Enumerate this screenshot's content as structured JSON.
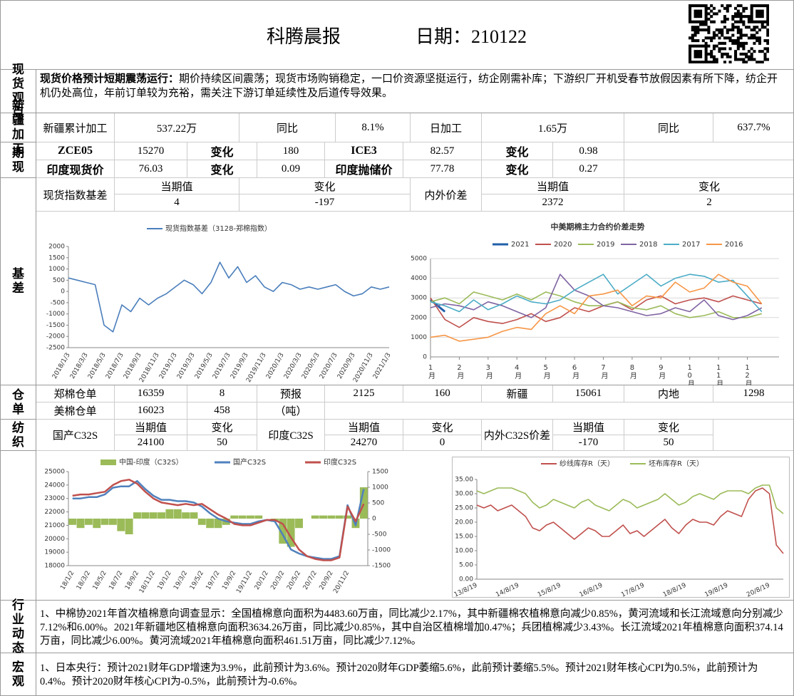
{
  "header": {
    "title": "科腾晨报",
    "date": "日期：210122"
  },
  "spot": {
    "label": "现货观点",
    "lead": "现货价格预计短期震荡运行：",
    "text": "期价持续区间震荡；现货市场购销稳定，一口价资源坚挺运行，纺企刚需补库；下游织厂开机受春节放假因素有所下降，纺企开机仍处高位，年前订单较为充裕，需关注下游订单延续性及后道传导效果。"
  },
  "xinjiang": {
    "label": "新疆加工",
    "cells": [
      "新疆累计加工",
      "537.22万",
      "同比",
      "8.1%",
      "日加工",
      "1.65万",
      "同比",
      "637.7%"
    ]
  },
  "futures": {
    "label": "期现",
    "rows": [
      [
        "ZCE05",
        "15270",
        "变化",
        "180",
        "ICE3",
        "82.57",
        "变化",
        "0.98"
      ],
      [
        "印度现货价",
        "76.03",
        "变化",
        "0.09",
        "印度抛储价",
        "77.78",
        "变化",
        "0.27"
      ]
    ]
  },
  "basis": {
    "label": "基差",
    "names": [
      "现货指数基差",
      "内外价差"
    ],
    "heads": [
      "当期值",
      "变化",
      "当期值",
      "变化"
    ],
    "values": [
      "4",
      "-197",
      "2372",
      "2"
    ]
  },
  "warehouse": {
    "label": "仓单",
    "rows": [
      [
        "郑棉仓单",
        "16359",
        "8",
        "预报",
        "2125",
        "160",
        "新疆",
        "15061",
        "内地",
        "1298"
      ],
      [
        "美棉仓单",
        "16023",
        "458",
        "（吨）"
      ]
    ]
  },
  "textile": {
    "label": "纺织",
    "names": [
      "国产C32S",
      "印度C32S",
      "内外C32S价差"
    ],
    "heads": [
      "当期值",
      "变化",
      "当期值",
      "变化",
      "当期值",
      "变化"
    ],
    "values": [
      "24100",
      "50",
      "24270",
      "0",
      "-170",
      "50"
    ]
  },
  "industry": {
    "label": "行业动态",
    "text": "1、中棉协2021年首次植棉意向调查显示：全国植棉意向面积为4483.60万亩，同比减少2.17%，其中新疆棉农植棉意向减少0.85%，黄河流域和长江流域意向分别减少7.12%和6.00%。2021年新疆地区植棉意向面积3634.26万亩，同比减少0.85%，其中自治区植棉增加0.47%；兵团植棉减少3.43%。长江流域2021年植棉意向面积374.14万亩，同比减少6.00%。黄河流域2021年植棉意向面积461.51万亩，同比减少7.12%。"
  },
  "macro": {
    "label": "宏观",
    "text": "1、日本央行：预计2021财年GDP增速为3.9%，此前预计为3.6%。预计2020财年GDP萎缩5.6%，此前预计萎缩5.5%。预计2021财年核心CPI为0.5%，此前预计为0.4%。预计2020财年核心CPI为-0.5%，此前预计为-0.6%。"
  },
  "chart_data": [
    {
      "type": "line",
      "categories": [
        "2018/1/3",
        null,
        "2018/3/3",
        null,
        "2018/5/3",
        null,
        "2018/7/3",
        null,
        "2018/9/3",
        null,
        "2018/11/3",
        null,
        "2019/1/3",
        null,
        "2019/3/3",
        null,
        "2019/5/3",
        null,
        "2019/7/3",
        null,
        "2019/9/3",
        null,
        "2019/11/3",
        null,
        "2020/1/3",
        null,
        "2020/3/3",
        null,
        "2020/5/3",
        null,
        "2020/7/3",
        null,
        "2020/9/3",
        null,
        "2020/11/3",
        null,
        "2021/1/3"
      ],
      "series": [
        {
          "name": "现货指数基差（3128-郑棉指数）",
          "color": "#4a7ebb",
          "values": [
            600,
            500,
            400,
            300,
            -1500,
            -1800,
            -600,
            -900,
            -300,
            -600,
            -300,
            -100,
            200,
            500,
            300,
            -100,
            400,
            1300,
            600,
            1100,
            400,
            700,
            200,
            0,
            400,
            300,
            100,
            200,
            100,
            200,
            300,
            0,
            -200,
            -100,
            200,
            100,
            200
          ]
        }
      ],
      "ylim": [
        -2500,
        2000
      ],
      "yticks": [
        2000,
        1500,
        1000,
        500,
        0,
        -500,
        -1000,
        -1500,
        -2000,
        -2500
      ],
      "grid": false
    },
    {
      "type": "line",
      "title": "中美期棉主力合约价差走势",
      "x": [
        1,
        1.5,
        2,
        2.5,
        3,
        3.5,
        4,
        4.5,
        5,
        5.5,
        6,
        6.5,
        7,
        7.5,
        8,
        8.5,
        9,
        9.5,
        10,
        10.5,
        11,
        11.5,
        12,
        12.5
      ],
      "series": [
        {
          "name": "2021",
          "color": "#1f5fa8",
          "values": [
            2900,
            2300,
            null,
            null,
            null,
            null,
            null,
            null,
            null,
            null,
            null,
            null,
            null,
            null,
            null,
            null,
            null,
            null,
            null,
            null,
            null,
            null,
            null,
            null
          ]
        },
        {
          "name": "2020",
          "color": "#c0504d",
          "values": [
            3000,
            1900,
            1500,
            2000,
            1800,
            1700,
            1900,
            2200,
            1800,
            2000,
            2500,
            2300,
            2600,
            2800,
            2400,
            2900,
            3100,
            2700,
            2900,
            3000,
            2800,
            3100,
            2900,
            2700
          ]
        },
        {
          "name": "2019",
          "color": "#9bbb59",
          "values": [
            2800,
            3000,
            2700,
            3300,
            3100,
            2900,
            3200,
            2900,
            3300,
            3100,
            2800,
            2600,
            2600,
            2800,
            2500,
            2400,
            2600,
            2200,
            2000,
            2100,
            2300,
            2000,
            2000,
            2200
          ]
        },
        {
          "name": "2018",
          "color": "#8064a2",
          "values": [
            2500,
            2700,
            2600,
            2400,
            2800,
            2600,
            2300,
            2000,
            2500,
            4200,
            3400,
            3100,
            2600,
            2500,
            2300,
            2100,
            2200,
            2500,
            2300,
            2900,
            2100,
            1900,
            2100,
            2500
          ]
        },
        {
          "name": "2017",
          "color": "#4bacc6",
          "values": [
            2800,
            2600,
            2300,
            2900,
            2400,
            2700,
            3100,
            2800,
            2700,
            2900,
            3400,
            3800,
            4200,
            3200,
            3700,
            4200,
            3600,
            4000,
            4200,
            4100,
            3800,
            3900,
            3100,
            2300
          ]
        },
        {
          "name": "2016",
          "color": "#f79646",
          "values": [
            1000,
            1100,
            800,
            900,
            1000,
            1300,
            1500,
            1400,
            2200,
            2600,
            2200,
            3100,
            3200,
            3400,
            2600,
            3100,
            3000,
            3800,
            3300,
            3500,
            4200,
            3800,
            3600,
            2700
          ]
        }
      ],
      "xlim": [
        1,
        13.1
      ],
      "xticks": [
        {
          "value": 1,
          "label": "1月"
        },
        {
          "value": 2,
          "label": "2月"
        },
        {
          "value": 3,
          "label": "3月"
        },
        {
          "value": 4,
          "label": "4月"
        },
        {
          "value": 5,
          "label": "5月"
        },
        {
          "value": 6,
          "label": "6月"
        },
        {
          "value": 7,
          "label": "7月"
        },
        {
          "value": 8,
          "label": "8月"
        },
        {
          "value": 9,
          "label": "9月"
        },
        {
          "value": 10,
          "label": "10月"
        },
        {
          "value": 11,
          "label": "11月"
        },
        {
          "value": 12,
          "label": "12月"
        }
      ],
      "ylim": [
        0,
        5000
      ],
      "yticks": [
        0,
        1000,
        2000,
        3000,
        4000,
        5000
      ],
      "grid": true
    },
    {
      "type": "combo",
      "categories": [
        "18/1/2",
        null,
        "18/3/2",
        null,
        "18/5/2",
        null,
        "18/7/2",
        null,
        "18/9/2",
        null,
        "18/11/2",
        null,
        "19/1/2",
        null,
        "19/3/2",
        null,
        "19/5/2",
        null,
        "19/7/2",
        null,
        "19/9/2",
        null,
        "19/11/2",
        null,
        "20/1/2",
        null,
        "20/3/2",
        null,
        "20/5/2",
        null,
        "20/7/2",
        null,
        "20/9/2",
        null,
        "20/11/2",
        null,
        null
      ],
      "series": [
        {
          "name": "中国-印度（C32S）",
          "type": "bar",
          "axis": "y2",
          "color": "#9bbb59",
          "values": [
            -200,
            -300,
            -200,
            -300,
            -200,
            -200,
            -400,
            -500,
            200,
            200,
            200,
            200,
            300,
            300,
            200,
            200,
            -200,
            -300,
            -300,
            -200,
            100,
            100,
            100,
            100,
            0,
            -100,
            -800,
            -900,
            -300,
            0,
            100,
            100,
            100,
            100,
            100,
            -300,
            1000
          ]
        },
        {
          "name": "国产C32S",
          "type": "line",
          "color": "#4f81bd",
          "values": [
            23000,
            23000,
            23100,
            23100,
            23300,
            23800,
            23900,
            23900,
            24300,
            23700,
            23200,
            22900,
            22900,
            22800,
            22800,
            22700,
            22400,
            21900,
            21500,
            21300,
            21200,
            21100,
            21100,
            21300,
            21400,
            21300,
            20300,
            19200,
            18900,
            18700,
            18600,
            18500,
            18500,
            18700,
            22500,
            21000,
            23700
          ]
        },
        {
          "name": "印度C32S",
          "type": "line",
          "color": "#c0504d",
          "values": [
            23200,
            23300,
            23300,
            23400,
            23500,
            24000,
            24300,
            24400,
            24100,
            23500,
            23000,
            22700,
            22600,
            22500,
            22600,
            22500,
            22600,
            22200,
            21800,
            21500,
            21100,
            21000,
            21000,
            21200,
            21400,
            21400,
            21100,
            20100,
            19200,
            18700,
            18500,
            18400,
            18400,
            18600,
            22400,
            21300,
            22600
          ]
        }
      ],
      "ylim": [
        18000,
        25000
      ],
      "yticks": [
        25000,
        24000,
        23000,
        22000,
        21000,
        20000,
        19000,
        18000
      ],
      "y2lim": [
        -1500,
        1500
      ],
      "y2ticks": [
        1500,
        1000,
        500,
        0,
        -500,
        -1000,
        -1500
      ],
      "grid": false
    },
    {
      "type": "line",
      "categories": [
        "13/8/19",
        null,
        null,
        null,
        null,
        null,
        "14/8/19",
        null,
        null,
        null,
        null,
        null,
        "15/8/19",
        null,
        null,
        null,
        null,
        null,
        "16/8/19",
        null,
        null,
        null,
        null,
        null,
        "17/8/19",
        null,
        null,
        null,
        null,
        null,
        "18/8/19",
        null,
        null,
        null,
        null,
        null,
        "19/8/19",
        null,
        null,
        null,
        null,
        null,
        "20/8/19",
        null,
        null
      ],
      "series": [
        {
          "name": "纱线库存R（天）",
          "color": "#c0504d",
          "values": [
            26,
            25,
            26,
            24,
            25,
            26,
            24,
            22,
            18,
            17,
            19,
            20,
            18,
            16,
            14,
            16,
            18,
            17,
            15,
            15,
            17,
            19,
            16,
            17,
            15,
            17,
            19,
            21,
            18,
            16,
            19,
            21,
            20,
            20,
            19,
            22,
            24,
            23,
            22,
            28,
            31,
            32,
            30,
            12,
            9
          ]
        },
        {
          "name": "坯布库存R（天）",
          "color": "#9bbb59",
          "values": [
            31,
            30,
            31,
            32,
            32,
            32,
            31,
            30,
            27,
            25,
            26,
            28,
            27,
            26,
            25,
            27,
            28,
            26,
            25,
            24,
            26,
            28,
            27,
            25,
            26,
            27,
            28,
            30,
            28,
            26,
            27,
            29,
            30,
            29,
            28,
            30,
            31,
            31,
            31,
            30,
            32,
            33,
            33,
            25,
            23
          ]
        }
      ],
      "ylim": [
        0,
        35
      ],
      "yticks": [
        {
          "value": 0,
          "label": "0.00"
        },
        {
          "value": 5,
          "label": "5.00"
        },
        {
          "value": 10,
          "label": "10.00"
        },
        {
          "value": 15,
          "label": "15.00"
        },
        {
          "value": 20,
          "label": "20.00"
        },
        {
          "value": 25,
          "label": "25.00"
        },
        {
          "value": 30,
          "label": "30.00"
        },
        {
          "value": 35,
          "label": "35.00"
        }
      ],
      "grid": false
    }
  ]
}
